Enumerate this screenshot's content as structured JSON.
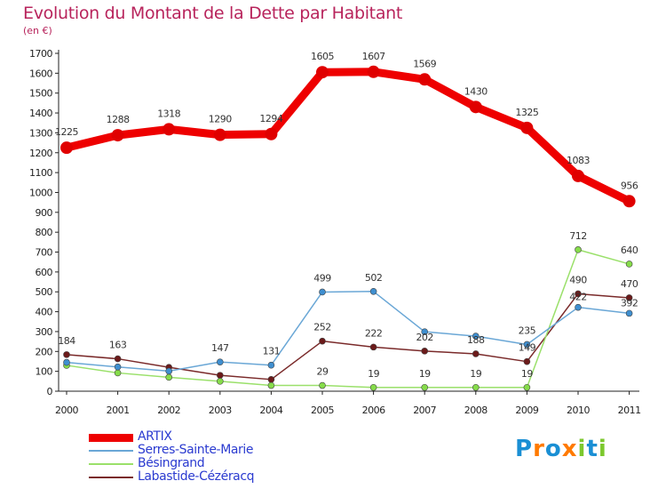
{
  "header": {
    "title": "Evolution du Montant de la Dette par Habitant",
    "subtitle": "(en €)"
  },
  "logo": {
    "letters": [
      "P",
      "r",
      "o",
      "x",
      "i",
      "t",
      "i"
    ],
    "colors": [
      "#1a8fd4",
      "#ff7a00",
      "#1a8fd4",
      "#ff7a00",
      "#7cc82e",
      "#1a8fd4",
      "#7cc82e"
    ]
  },
  "chart_data": {
    "type": "line",
    "title": "Evolution du Montant de la Dette par Habitant",
    "subtitle": "(en €)",
    "x": [
      "2000",
      "2001",
      "2002",
      "2003",
      "2004",
      "2005",
      "2006",
      "2007",
      "2008",
      "2009",
      "2010",
      "2011"
    ],
    "ylim": [
      0,
      1700
    ],
    "yticks": [
      0,
      100,
      200,
      300,
      400,
      500,
      600,
      700,
      800,
      900,
      1000,
      1100,
      1200,
      1300,
      1400,
      1500,
      1600,
      1700
    ],
    "grid": false,
    "legend": "bottom-left",
    "series": [
      {
        "name": "ARTIX",
        "color": "#ee0000",
        "marker": "#e00000",
        "values": [
          1225,
          1288,
          1318,
          1290,
          1294,
          1605,
          1607,
          1569,
          1430,
          1325,
          1083,
          956
        ]
      },
      {
        "name": "Serres-Sainte-Marie",
        "color": "#6aa7d6",
        "marker": "#3f8fd0",
        "values": [
          145,
          122,
          101,
          147,
          131,
          499,
          502,
          299,
          277,
          235,
          422,
          392
        ]
      },
      {
        "name": "Bésingrand",
        "color": "#9ae06a",
        "marker": "#86dc4a",
        "values": [
          130,
          92,
          70,
          50,
          29,
          29,
          19,
          19,
          19,
          19,
          712,
          640
        ]
      },
      {
        "name": "Labastide-Cézéracq",
        "color": "#7a2a2a",
        "marker": "#6b1a1a",
        "values": [
          184,
          163,
          120,
          80,
          59,
          252,
          222,
          202,
          188,
          149,
          490,
          470
        ]
      }
    ],
    "data_labels": [
      [
        "1225",
        "1288",
        "1318",
        "1290",
        "1294",
        "1605",
        "1607",
        "1569",
        "1430",
        "1325",
        "1083",
        "956"
      ],
      [
        "",
        "",
        "",
        "147",
        "131",
        "499",
        "502",
        "",
        "",
        "235",
        "422",
        "392"
      ],
      [
        "",
        "",
        "",
        "",
        "",
        "29",
        "19",
        "19",
        "19",
        "19",
        "712",
        "640"
      ],
      [
        "184",
        "163",
        "",
        "",
        "",
        "252",
        "222",
        "202",
        "188",
        "149",
        "490",
        "470"
      ]
    ]
  }
}
